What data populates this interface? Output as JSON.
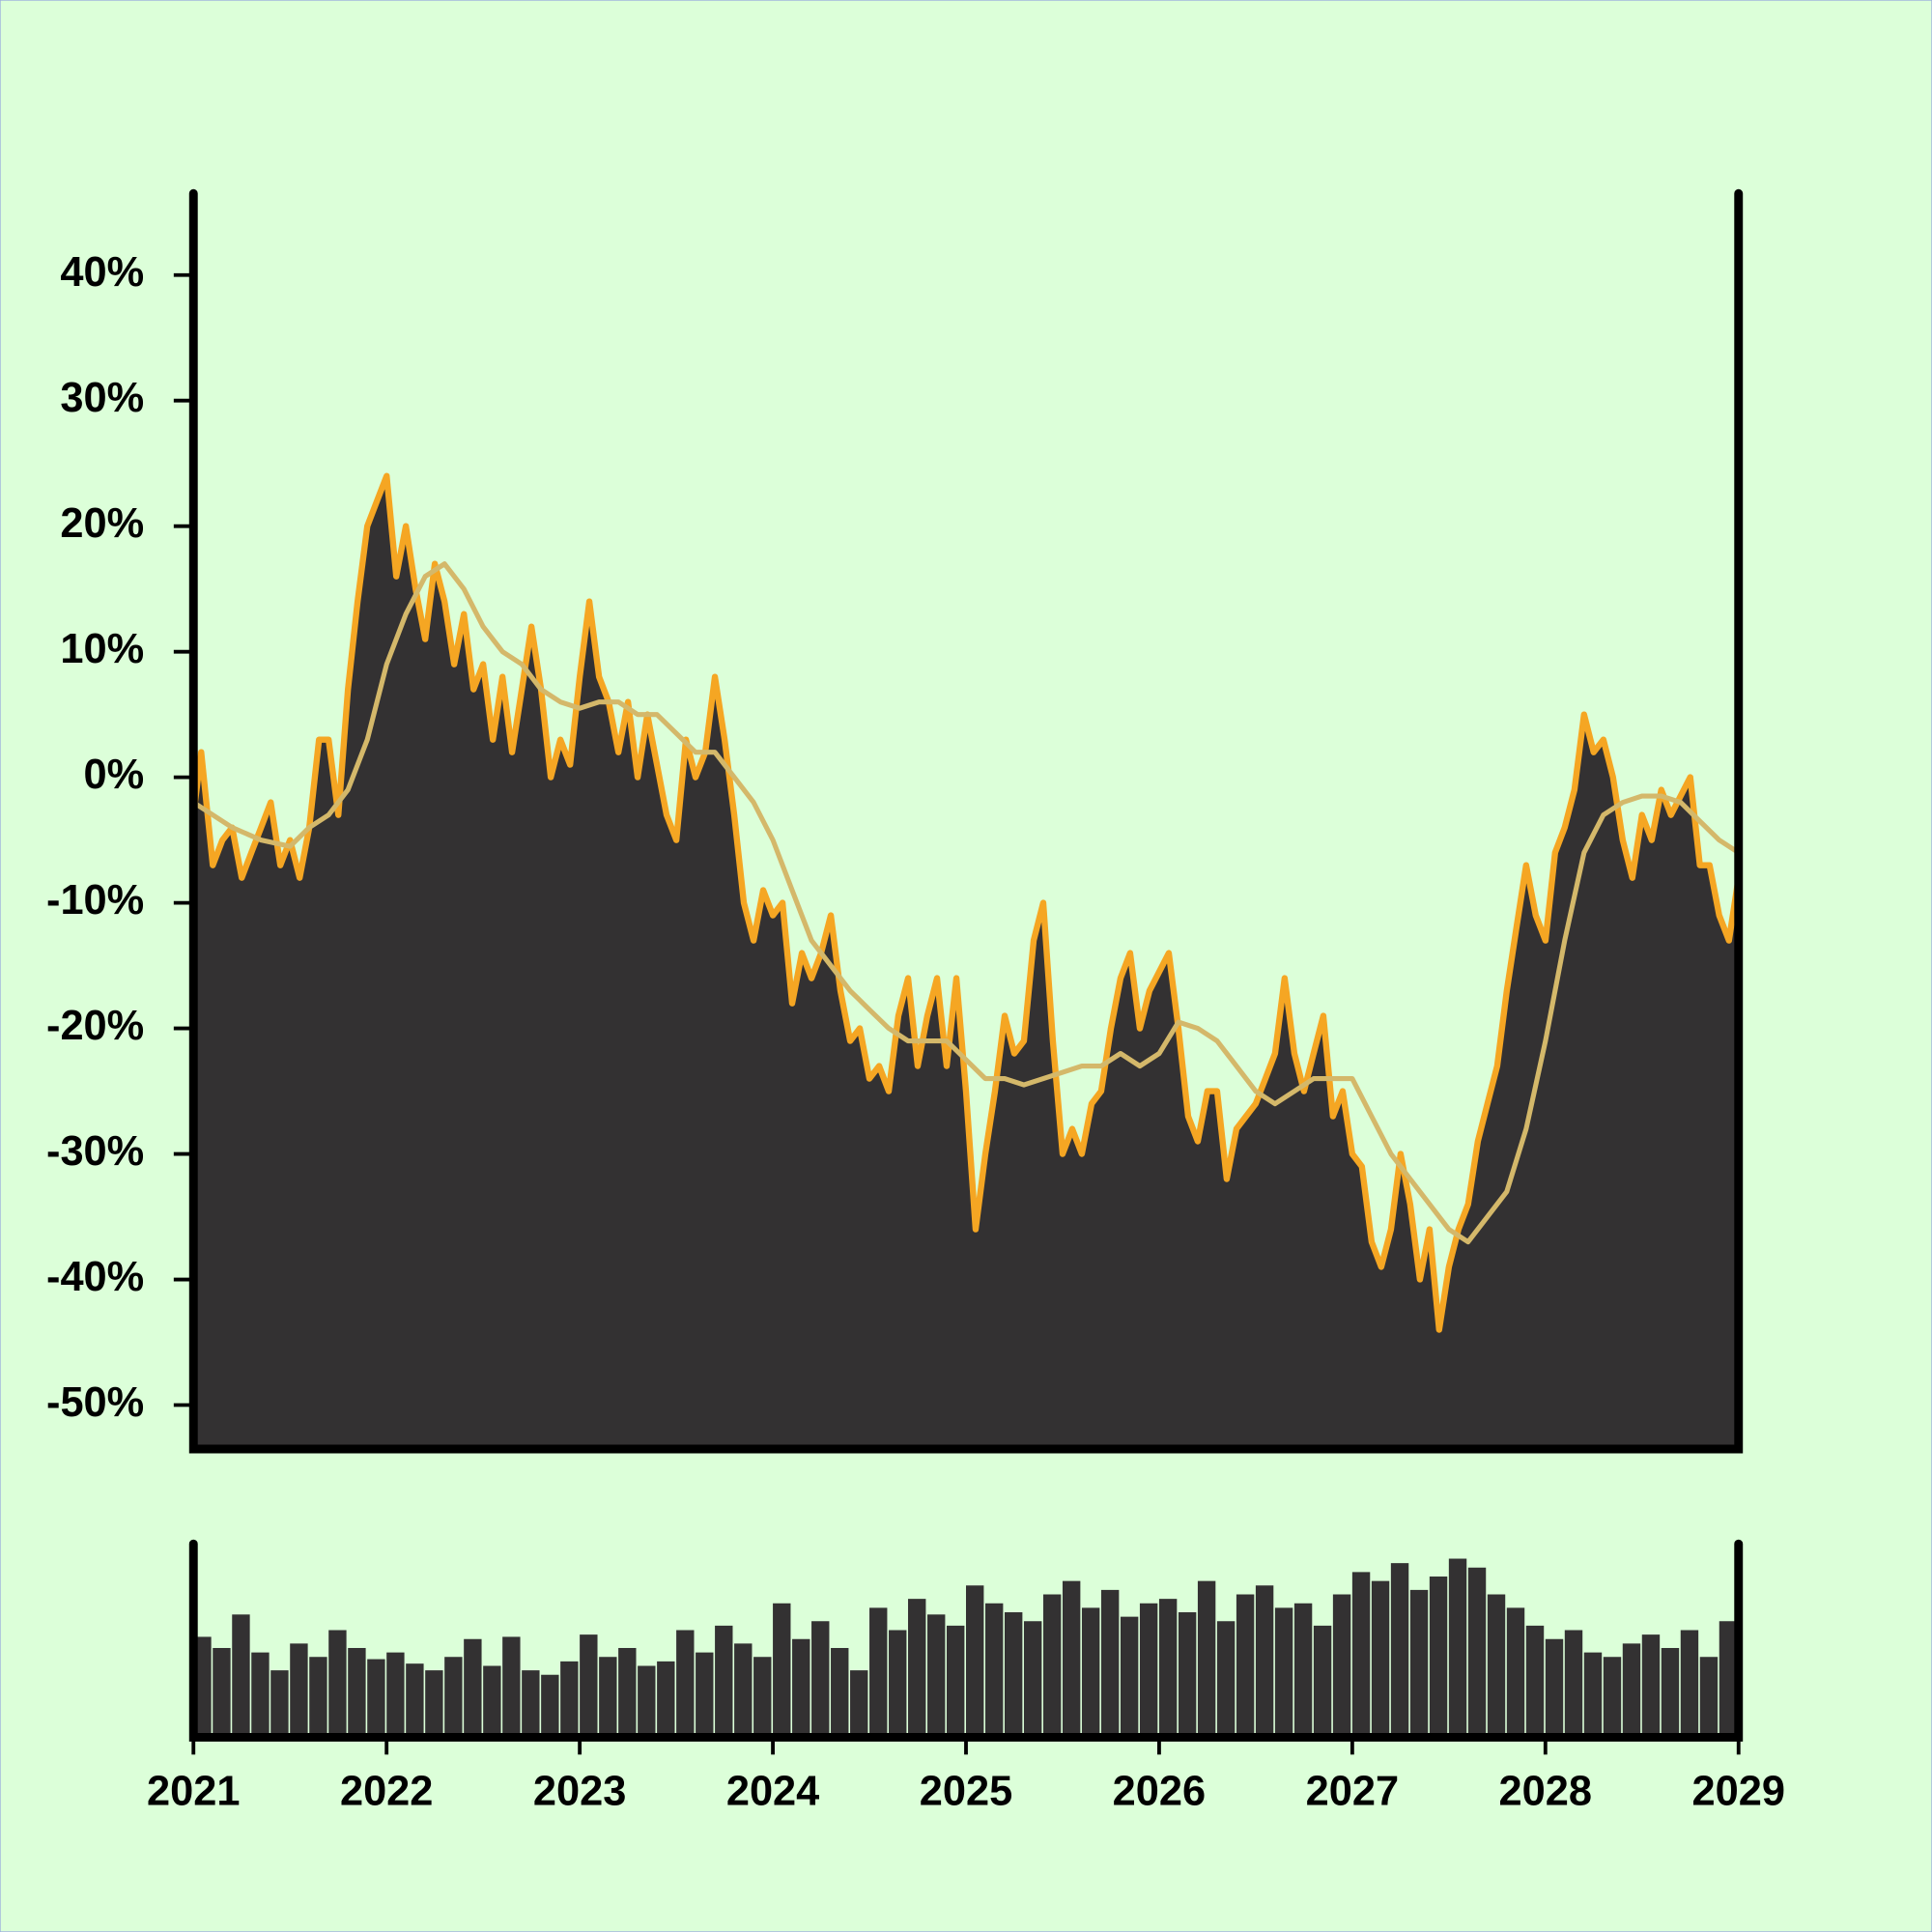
{
  "chart_data": [
    {
      "type": "line",
      "xlim": [
        2021,
        2029
      ],
      "ylim": [
        -53.5,
        46.5
      ],
      "yticks": [
        {
          "value": 40,
          "label": "40%"
        },
        {
          "value": 30,
          "label": "30%"
        },
        {
          "value": 20,
          "label": "20%"
        },
        {
          "value": 10,
          "label": "10%"
        },
        {
          "value": 0,
          "label": "0%"
        },
        {
          "value": -10,
          "label": "-10%"
        },
        {
          "value": -20,
          "label": "-20%"
        },
        {
          "value": -30,
          "label": "-30%"
        },
        {
          "value": -40,
          "label": "-40%"
        },
        {
          "value": -50,
          "label": "-50%"
        }
      ],
      "series": [
        {
          "color": "#f5a623",
          "fill": "#333132",
          "x": [
            2021.0,
            2021.04,
            2021.1,
            2021.15,
            2021.2,
            2021.25,
            2021.3,
            2021.35,
            2021.4,
            2021.45,
            2021.5,
            2021.55,
            2021.6,
            2021.65,
            2021.7,
            2021.75,
            2021.8,
            2021.85,
            2021.9,
            2021.95,
            2022.0,
            2022.05,
            2022.1,
            2022.15,
            2022.2,
            2022.25,
            2022.3,
            2022.35,
            2022.4,
            2022.45,
            2022.5,
            2022.55,
            2022.6,
            2022.65,
            2022.7,
            2022.75,
            2022.8,
            2022.85,
            2022.9,
            2022.95,
            2023.0,
            2023.05,
            2023.1,
            2023.15,
            2023.2,
            2023.25,
            2023.3,
            2023.35,
            2023.4,
            2023.45,
            2023.5,
            2023.55,
            2023.6,
            2023.65,
            2023.7,
            2023.75,
            2023.8,
            2023.85,
            2023.9,
            2023.95,
            2024.0,
            2024.05,
            2024.1,
            2024.15,
            2024.2,
            2024.25,
            2024.3,
            2024.35,
            2024.4,
            2024.45,
            2024.5,
            2024.55,
            2024.6,
            2024.65,
            2024.7,
            2024.75,
            2024.8,
            2024.85,
            2024.9,
            2024.95,
            2025.0,
            2025.05,
            2025.1,
            2025.15,
            2025.2,
            2025.25,
            2025.3,
            2025.35,
            2025.4,
            2025.45,
            2025.5,
            2025.55,
            2025.6,
            2025.65,
            2025.7,
            2025.75,
            2025.8,
            2025.85,
            2025.9,
            2025.95,
            2026.05,
            2026.1,
            2026.15,
            2026.2,
            2026.25,
            2026.3,
            2026.35,
            2026.4,
            2026.45,
            2026.5,
            2026.55,
            2026.6,
            2026.65,
            2026.7,
            2026.75,
            2026.8,
            2026.85,
            2026.9,
            2026.95,
            2027.0,
            2027.05,
            2027.1,
            2027.15,
            2027.2,
            2027.25,
            2027.3,
            2027.35,
            2027.4,
            2027.45,
            2027.5,
            2027.55,
            2027.6,
            2027.65,
            2027.7,
            2027.75,
            2027.8,
            2027.85,
            2027.9,
            2027.95,
            2028.0,
            2028.05,
            2028.1,
            2028.15,
            2028.2,
            2028.25,
            2028.3,
            2028.35,
            2028.4,
            2028.45,
            2028.5,
            2028.55,
            2028.6,
            2028.65,
            2028.75,
            2028.8,
            2028.85,
            2028.9,
            2028.95,
            2029.0
          ],
          "values": [
            -3,
            2,
            -7,
            -5,
            -4,
            -8,
            -6,
            -4,
            -2,
            -7,
            -5,
            -8,
            -4,
            3,
            3,
            -3,
            7,
            14,
            20,
            22,
            24,
            16,
            20,
            15,
            11,
            17,
            14,
            9,
            13,
            7,
            9,
            3,
            8,
            2,
            7,
            12,
            7,
            0,
            3,
            1,
            8,
            14,
            8,
            6,
            2,
            6,
            0,
            5,
            1,
            -3,
            -5,
            3,
            0,
            2,
            8,
            3,
            -3,
            -10,
            -13,
            -9,
            -11,
            -10,
            -18,
            -14,
            -16,
            -14,
            -11,
            -17,
            -21,
            -20,
            -24,
            -23,
            -25,
            -19,
            -16,
            -23,
            -19,
            -16,
            -23,
            -16,
            -25,
            -36,
            -30,
            -25,
            -19,
            -22,
            -21,
            -13,
            -10,
            -21,
            -30,
            -28,
            -30,
            -26,
            -25,
            -20,
            -16,
            -14,
            -20,
            -17,
            -14,
            -20,
            -27,
            -29,
            -25,
            -25,
            -32,
            -28,
            -27,
            -26,
            -24,
            -22,
            -16,
            -22,
            -25,
            -22,
            -19,
            -27,
            -25,
            -30,
            -31,
            -37,
            -39,
            -36,
            -30,
            -34,
            -40,
            -36,
            -44,
            -39,
            -36,
            -34,
            -29,
            -26,
            -23,
            -17,
            -12,
            -7,
            -11,
            -13,
            -6,
            -4,
            -1,
            5,
            2,
            3,
            0,
            -5,
            -8,
            -3,
            -5,
            -1,
            -3,
            0,
            -7,
            -7,
            -11,
            -13,
            -8
          ]
        },
        {
          "color": "#d4b86a",
          "x": [
            2021.0,
            2021.1,
            2021.2,
            2021.35,
            2021.5,
            2021.6,
            2021.7,
            2021.8,
            2021.9,
            2022.0,
            2022.1,
            2022.2,
            2022.3,
            2022.4,
            2022.5,
            2022.6,
            2022.7,
            2022.8,
            2022.9,
            2023.0,
            2023.1,
            2023.2,
            2023.3,
            2023.4,
            2023.5,
            2023.6,
            2023.7,
            2023.8,
            2023.9,
            2024.0,
            2024.1,
            2024.2,
            2024.3,
            2024.4,
            2024.5,
            2024.6,
            2024.7,
            2024.8,
            2024.9,
            2025.0,
            2025.1,
            2025.2,
            2025.3,
            2025.4,
            2025.5,
            2025.6,
            2025.7,
            2025.8,
            2025.9,
            2026.0,
            2026.1,
            2026.2,
            2026.3,
            2026.4,
            2026.5,
            2026.6,
            2026.7,
            2026.8,
            2026.9,
            2027.0,
            2027.1,
            2027.2,
            2027.3,
            2027.4,
            2027.5,
            2027.6,
            2027.7,
            2027.8,
            2027.9,
            2028.0,
            2028.1,
            2028.2,
            2028.3,
            2028.4,
            2028.5,
            2028.6,
            2028.7,
            2028.8,
            2028.9,
            2029.0
          ],
          "values": [
            -2,
            -3,
            -4,
            -5,
            -5.5,
            -4,
            -3,
            -1,
            3,
            9,
            13,
            16,
            17,
            15,
            12,
            10,
            9,
            7,
            6,
            5.5,
            6,
            6,
            5,
            5,
            3.5,
            2,
            2,
            0,
            -2,
            -5,
            -9,
            -13,
            -15,
            -17,
            -18.5,
            -20,
            -21,
            -21,
            -21,
            -22.5,
            -24,
            -24,
            -24.5,
            -24,
            -23.5,
            -23,
            -23,
            -22,
            -23,
            -22,
            -19.5,
            -20,
            -21,
            -23,
            -25,
            -26,
            -25,
            -24,
            -24,
            -24,
            -27,
            -30,
            -32,
            -34,
            -36,
            -37,
            -35,
            -33,
            -28,
            -21,
            -13,
            -6,
            -3,
            -2,
            -1.5,
            -1.5,
            -2,
            -3.5,
            -5,
            -6
          ]
        }
      ]
    },
    {
      "type": "bar",
      "xlim": [
        2021,
        2029
      ],
      "xticks": [
        2021,
        2022,
        2023,
        2024,
        2025,
        2026,
        2027,
        2028,
        2029
      ],
      "color": "#333132",
      "x": [
        2021.05,
        2021.15,
        2021.25,
        2021.35,
        2021.45,
        2021.55,
        2021.65,
        2021.75,
        2021.85,
        2021.95,
        2022.05,
        2022.15,
        2022.25,
        2022.35,
        2022.45,
        2022.55,
        2022.65,
        2022.75,
        2022.85,
        2022.95,
        2023.05,
        2023.15,
        2023.25,
        2023.35,
        2023.45,
        2023.55,
        2023.65,
        2023.75,
        2023.85,
        2023.95,
        2024.05,
        2024.15,
        2024.25,
        2024.35,
        2024.45,
        2024.55,
        2024.65,
        2024.75,
        2024.85,
        2024.95,
        2025.05,
        2025.15,
        2025.25,
        2025.35,
        2025.45,
        2025.55,
        2025.65,
        2025.75,
        2025.85,
        2025.95,
        2026.05,
        2026.15,
        2026.25,
        2026.35,
        2026.45,
        2026.55,
        2026.65,
        2026.75,
        2026.85,
        2026.95,
        2027.05,
        2027.15,
        2027.25,
        2027.35,
        2027.45,
        2027.55,
        2027.65,
        2027.75,
        2027.85,
        2027.95,
        2028.05,
        2028.15,
        2028.25,
        2028.35,
        2028.45,
        2028.55,
        2028.65,
        2028.75,
        2028.85,
        2028.95
      ],
      "values": [
        45,
        40,
        55,
        38,
        30,
        42,
        36,
        48,
        40,
        35,
        38,
        33,
        30,
        36,
        44,
        32,
        45,
        30,
        28,
        34,
        46,
        36,
        40,
        32,
        34,
        48,
        38,
        50,
        42,
        36,
        60,
        44,
        52,
        40,
        30,
        58,
        48,
        62,
        55,
        50,
        68,
        60,
        56,
        52,
        64,
        70,
        58,
        66,
        54,
        60,
        62,
        56,
        70,
        52,
        64,
        68,
        58,
        60,
        50,
        64,
        74,
        70,
        78,
        66,
        72,
        80,
        76,
        64,
        58,
        50,
        44,
        48,
        38,
        36,
        42,
        46,
        40,
        48,
        36,
        52
      ]
    }
  ]
}
